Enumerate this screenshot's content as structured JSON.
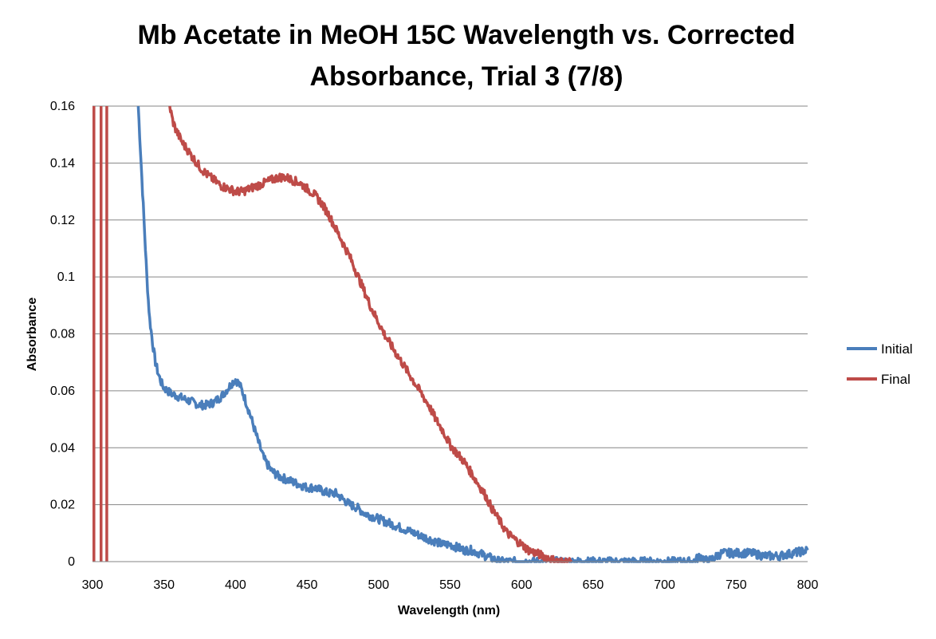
{
  "chart_data": {
    "type": "line",
    "title": "Mb Acetate in MeOH 15C Wavelength vs. Corrected Absorbance, Trial 3 (7/8)",
    "xlabel": "Wavelength (nm)",
    "ylabel": "Absorbance",
    "xlim": [
      300,
      800
    ],
    "ylim": [
      0,
      0.16
    ],
    "x_ticks": [
      "300",
      "350",
      "400",
      "450",
      "500",
      "550",
      "600",
      "650",
      "700",
      "750",
      "800"
    ],
    "y_ticks": [
      "0",
      "0.02",
      "0.04",
      "0.06",
      "0.08",
      "0.1",
      "0.12",
      "0.14",
      "0.16"
    ],
    "grid": "horizontal",
    "legend_position": "right",
    "colors": {
      "Initial": "#4a7ebb",
      "Final": "#be4b48",
      "grid": "#868686"
    },
    "series": [
      {
        "name": "Initial",
        "x": [
          332,
          333,
          334,
          335,
          336,
          337,
          338,
          339,
          340,
          342,
          344,
          346,
          348,
          350,
          355,
          360,
          365,
          370,
          375,
          380,
          385,
          390,
          395,
          398,
          400,
          403,
          406,
          410,
          413,
          416,
          420,
          425,
          430,
          435,
          440,
          445,
          450,
          455,
          460,
          465,
          470,
          475,
          480,
          485,
          490,
          495,
          500,
          505,
          510,
          515,
          520,
          525,
          530,
          535,
          540,
          545,
          550,
          555,
          560,
          565,
          570,
          575,
          580,
          585,
          590,
          600,
          620,
          650,
          700,
          720,
          725,
          730,
          740,
          750,
          760,
          770,
          780,
          790,
          800
        ],
        "y": [
          0.16,
          0.15,
          0.14,
          0.13,
          0.12,
          0.11,
          0.1,
          0.092,
          0.085,
          0.077,
          0.07,
          0.066,
          0.063,
          0.061,
          0.059,
          0.058,
          0.057,
          0.056,
          0.055,
          0.055,
          0.056,
          0.058,
          0.061,
          0.063,
          0.064,
          0.062,
          0.058,
          0.052,
          0.047,
          0.042,
          0.036,
          0.032,
          0.03,
          0.029,
          0.028,
          0.027,
          0.026,
          0.026,
          0.025,
          0.024,
          0.024,
          0.022,
          0.02,
          0.019,
          0.017,
          0.016,
          0.015,
          0.014,
          0.013,
          0.012,
          0.011,
          0.01,
          0.009,
          0.008,
          0.007,
          0.006,
          0.006,
          0.005,
          0.004,
          0.004,
          0.003,
          0.002,
          0.001,
          0.0,
          0.0,
          0.0,
          0.0,
          0.0,
          0.0,
          0.0,
          0.002,
          0.0,
          0.003,
          0.003,
          0.003,
          0.002,
          0.002,
          0.003,
          0.004
        ]
      },
      {
        "name": "Final",
        "x": [
          354,
          356,
          358,
          360,
          363,
          366,
          370,
          373,
          376,
          380,
          385,
          390,
          395,
          400,
          405,
          410,
          415,
          420,
          425,
          430,
          435,
          440,
          445,
          450,
          455,
          460,
          465,
          470,
          475,
          480,
          485,
          490,
          495,
          500,
          505,
          510,
          515,
          520,
          525,
          530,
          535,
          540,
          545,
          550,
          555,
          560,
          565,
          570,
          575,
          580,
          585,
          590,
          595,
          600,
          605,
          610,
          615,
          620,
          625,
          630,
          635
        ],
        "y": [
          0.16,
          0.155,
          0.152,
          0.15,
          0.147,
          0.145,
          0.142,
          0.14,
          0.138,
          0.136,
          0.134,
          0.132,
          0.131,
          0.13,
          0.13,
          0.131,
          0.132,
          0.133,
          0.134,
          0.135,
          0.135,
          0.134,
          0.133,
          0.131,
          0.129,
          0.126,
          0.122,
          0.117,
          0.112,
          0.107,
          0.101,
          0.095,
          0.089,
          0.084,
          0.079,
          0.075,
          0.071,
          0.067,
          0.063,
          0.059,
          0.055,
          0.05,
          0.046,
          0.041,
          0.038,
          0.035,
          0.031,
          0.027,
          0.023,
          0.018,
          0.014,
          0.01,
          0.008,
          0.006,
          0.004,
          0.003,
          0.002,
          0.001,
          0.0,
          0.0,
          0.0
        ]
      }
    ],
    "final_spikes_x": [
      301,
      306,
      310
    ]
  }
}
